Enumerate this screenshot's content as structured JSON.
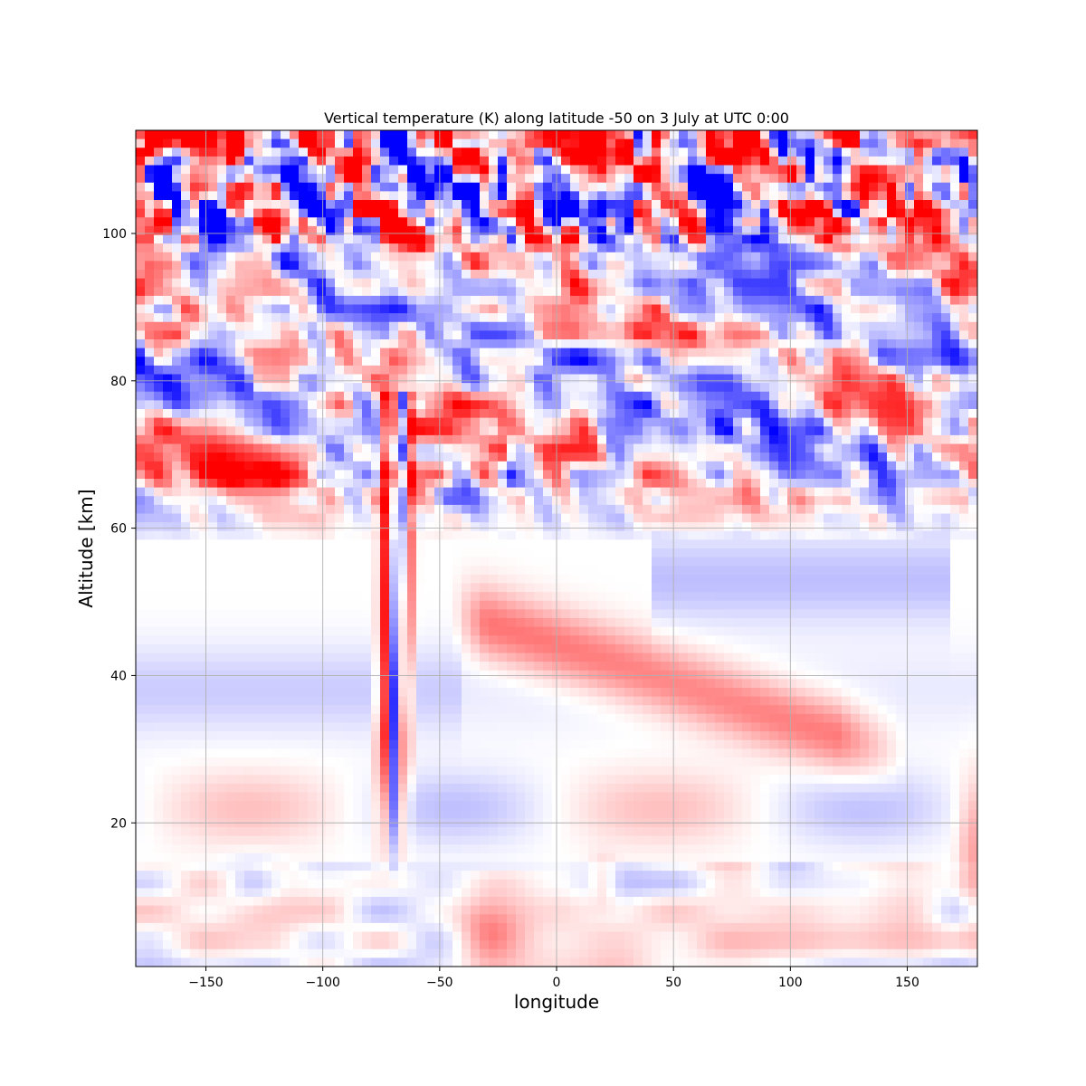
{
  "chart_data": {
    "type": "heatmap",
    "title": "Vertical temperature (K) along latitude -50 on 3 July at UTC 0:00",
    "xlabel": "longitude",
    "ylabel": "Altitude [km]",
    "xlim": [
      -180,
      180
    ],
    "ylim": [
      0.5,
      114
    ],
    "xticks": [
      -150,
      -100,
      -50,
      0,
      50,
      100,
      150
    ],
    "xtick_labels": [
      "−150",
      "−100",
      "−50",
      "0",
      "50",
      "100",
      "150"
    ],
    "yticks": [
      20,
      40,
      60,
      80,
      100
    ],
    "ytick_labels": [
      "20",
      "40",
      "60",
      "80",
      "100"
    ],
    "grid": true,
    "colormap": "bwr",
    "colors": {
      "cold": "#0000ff",
      "neutral": "#ffffff",
      "warm": "#ff0000"
    },
    "features": [
      {
        "name": "warm tilted band",
        "lon": [
          -40,
          140
        ],
        "alt": [
          48,
          30
        ],
        "sign": 1,
        "strength": 0.55
      },
      {
        "name": "deep wave plume",
        "lon": [
          -72,
          -62
        ],
        "alt": [
          75,
          15
        ],
        "sign": 1,
        "strength": 0.9
      },
      {
        "name": "mesosphere disturbances",
        "alt": [
          60,
          98
        ],
        "strength": 0.8
      },
      {
        "name": "thermosphere layer",
        "alt": [
          98,
          114
        ],
        "strength": 1.0
      }
    ]
  }
}
